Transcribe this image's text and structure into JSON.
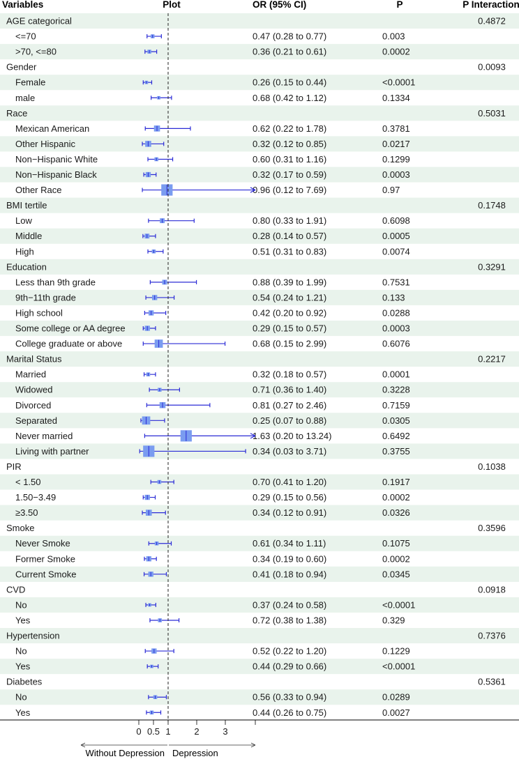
{
  "headers": {
    "variables": "Variables",
    "plot": "Plot",
    "or": "OR (95% CI)",
    "p": "P",
    "p_interaction": "P Interaction"
  },
  "footer": {
    "left_label": "Without Depression",
    "right_label": "Depression"
  },
  "colors": {
    "stripe": "#e9f3ec",
    "marker": "#2b2bd6",
    "box": "#7a9cf0",
    "text": "#1a1a1a"
  },
  "chart_data": {
    "type": "forest",
    "xlim": [
      0,
      3
    ],
    "reference_line": 1,
    "x_ticks": [
      {
        "value": 0,
        "label": "0"
      },
      {
        "value": 0.5,
        "label": "0.5"
      },
      {
        "value": 1,
        "label": "1"
      },
      {
        "value": 2,
        "label": "2"
      },
      {
        "value": 3,
        "label": "3"
      }
    ],
    "rows": [
      {
        "label": "AGE categorical",
        "header": true,
        "p_int": "0.4872"
      },
      {
        "label": "<=70",
        "or": 0.47,
        "lo": 0.28,
        "hi": 0.77,
        "ci_text": "0.47 (0.28 to 0.77)",
        "p": "0.003",
        "w": 0.018
      },
      {
        "label": ">70, <=80",
        "or": 0.36,
        "lo": 0.21,
        "hi": 0.61,
        "ci_text": "0.36 (0.21 to 0.61)",
        "p": "0.0002",
        "w": 0.018
      },
      {
        "label": "Gender",
        "header": true,
        "p_int": "0.0093"
      },
      {
        "label": "Female",
        "or": 0.26,
        "lo": 0.15,
        "hi": 0.44,
        "ci_text": "0.26 (0.15 to 0.44)",
        "p": "<0.0001",
        "w": 0.012
      },
      {
        "label": "male",
        "or": 0.68,
        "lo": 0.42,
        "hi": 1.12,
        "ci_text": "0.68 (0.42 to 1.12)",
        "p": "0.1334",
        "w": 0.012
      },
      {
        "label": "Race",
        "header": true,
        "p_int": "0.5031"
      },
      {
        "label": "Mexican American",
        "or": 0.62,
        "lo": 0.22,
        "hi": 1.78,
        "ci_text": "0.62 (0.22 to 1.78)",
        "p": "0.3781",
        "w": 0.05
      },
      {
        "label": "Other Hispanic",
        "or": 0.32,
        "lo": 0.12,
        "hi": 0.85,
        "ci_text": "0.32 (0.12 to 0.85)",
        "p": "0.0217",
        "w": 0.05
      },
      {
        "label": "Non−Hispanic White",
        "or": 0.6,
        "lo": 0.31,
        "hi": 1.16,
        "ci_text": "0.60 (0.31 to 1.16)",
        "p": "0.1299",
        "w": 0.018
      },
      {
        "label": "Non−Hispanic Black",
        "or": 0.32,
        "lo": 0.17,
        "hi": 0.59,
        "ci_text": "0.32 (0.17 to 0.59)",
        "p": "0.0003",
        "w": 0.035
      },
      {
        "label": "Other Race",
        "or": 0.96,
        "lo": 0.12,
        "hi": 7.69,
        "ci_text": "0.96 (0.12 to 7.69)",
        "p": "0.97",
        "w": 0.2
      },
      {
        "label": "BMI tertile",
        "header": true,
        "p_int": "0.1748"
      },
      {
        "label": "Low",
        "or": 0.8,
        "lo": 0.33,
        "hi": 1.91,
        "ci_text": "0.80 (0.33 to 1.91)",
        "p": "0.6098",
        "w": 0.03
      },
      {
        "label": "Middle",
        "or": 0.28,
        "lo": 0.14,
        "hi": 0.57,
        "ci_text": "0.28 (0.14 to 0.57)",
        "p": "0.0005",
        "w": 0.03
      },
      {
        "label": "High",
        "or": 0.51,
        "lo": 0.31,
        "hi": 0.83,
        "ci_text": "0.51 (0.31 to 0.83)",
        "p": "0.0074",
        "w": 0.018
      },
      {
        "label": "Education",
        "header": true,
        "p_int": "0.3291"
      },
      {
        "label": "Less than 9th grade",
        "or": 0.88,
        "lo": 0.39,
        "hi": 1.99,
        "ci_text": "0.88 (0.39 to 1.99)",
        "p": "0.7531",
        "w": 0.03
      },
      {
        "label": "9th−11th grade",
        "or": 0.54,
        "lo": 0.24,
        "hi": 1.21,
        "ci_text": "0.54 (0.24 to 1.21)",
        "p": "0.133",
        "w": 0.035
      },
      {
        "label": "High school",
        "or": 0.42,
        "lo": 0.2,
        "hi": 0.92,
        "ci_text": "0.42 (0.20 to 0.92)",
        "p": "0.0288",
        "w": 0.035
      },
      {
        "label": "Some college or AA degree",
        "or": 0.29,
        "lo": 0.15,
        "hi": 0.57,
        "ci_text": "0.29 (0.15 to 0.57)",
        "p": "0.0003",
        "w": 0.035
      },
      {
        "label": "College graduate or above",
        "or": 0.68,
        "lo": 0.15,
        "hi": 2.99,
        "ci_text": "0.68 (0.15 to 2.99)",
        "p": "0.6076",
        "w": 0.1
      },
      {
        "label": "Marital Status",
        "header": true,
        "p_int": "0.2217"
      },
      {
        "label": "Married",
        "or": 0.32,
        "lo": 0.18,
        "hi": 0.57,
        "ci_text": "0.32 (0.18 to 0.57)",
        "p": "0.0001",
        "w": 0.018
      },
      {
        "label": "Widowed",
        "or": 0.71,
        "lo": 0.36,
        "hi": 1.4,
        "ci_text": "0.71 (0.36 to 1.40)",
        "p": "0.3228",
        "w": 0.018
      },
      {
        "label": "Divorced",
        "or": 0.81,
        "lo": 0.27,
        "hi": 2.46,
        "ci_text": "0.81 (0.27 to 2.46)",
        "p": "0.7159",
        "w": 0.05
      },
      {
        "label": "Separated",
        "or": 0.25,
        "lo": 0.07,
        "hi": 0.88,
        "ci_text": "0.25 (0.07 to 0.88)",
        "p": "0.0305",
        "w": 0.1
      },
      {
        "label": "Never married",
        "or": 1.63,
        "lo": 0.2,
        "hi": 13.24,
        "ci_text": "1.63 (0.20 to 13.24)",
        "p": "0.6492",
        "w": 0.2
      },
      {
        "label": "Living with partner",
        "or": 0.34,
        "lo": 0.03,
        "hi": 3.71,
        "ci_text": "0.34 (0.03 to 3.71)",
        "p": "0.3755",
        "w": 0.2
      },
      {
        "label": "PIR",
        "header": true,
        "p_int": "0.1038"
      },
      {
        "label": "< 1.50",
        "or": 0.7,
        "lo": 0.41,
        "hi": 1.2,
        "ci_text": "0.70 (0.41 to 1.20)",
        "p": "0.1917",
        "w": 0.018
      },
      {
        "label": "1.50−3.49",
        "or": 0.29,
        "lo": 0.15,
        "hi": 0.56,
        "ci_text": "0.29 (0.15 to 0.56)",
        "p": "0.0002",
        "w": 0.035
      },
      {
        "label": "≥3.50",
        "or": 0.34,
        "lo": 0.12,
        "hi": 0.91,
        "ci_text": "0.34 (0.12 to 0.91)",
        "p": "0.0326",
        "w": 0.05
      },
      {
        "label": "Smoke",
        "header": true,
        "p_int": "0.3596"
      },
      {
        "label": "Never Smoke",
        "or": 0.61,
        "lo": 0.34,
        "hi": 1.11,
        "ci_text": "0.61 (0.34 to 1.11)",
        "p": "0.1075",
        "w": 0.018
      },
      {
        "label": "Former Smoke",
        "or": 0.34,
        "lo": 0.19,
        "hi": 0.6,
        "ci_text": "0.34 (0.19 to 0.60)",
        "p": "0.0002",
        "w": 0.035
      },
      {
        "label": "Current Smoke",
        "or": 0.41,
        "lo": 0.18,
        "hi": 0.94,
        "ci_text": "0.41 (0.18 to 0.94)",
        "p": "0.0345",
        "w": 0.035
      },
      {
        "label": "CVD",
        "header": true,
        "p_int": "0.0918"
      },
      {
        "label": "No",
        "or": 0.37,
        "lo": 0.24,
        "hi": 0.58,
        "ci_text": "0.37 (0.24 to 0.58)",
        "p": "<0.0001",
        "w": 0.012
      },
      {
        "label": "Yes",
        "or": 0.72,
        "lo": 0.38,
        "hi": 1.38,
        "ci_text": "0.72 (0.38 to 1.38)",
        "p": "0.329",
        "w": 0.018
      },
      {
        "label": "Hypertension",
        "header": true,
        "p_int": "0.7376"
      },
      {
        "label": "No",
        "or": 0.52,
        "lo": 0.22,
        "hi": 1.2,
        "ci_text": "0.52 (0.22 to 1.20)",
        "p": "0.1229",
        "w": 0.035
      },
      {
        "label": "Yes",
        "or": 0.44,
        "lo": 0.29,
        "hi": 0.66,
        "ci_text": "0.44 (0.29 to 0.66)",
        "p": "<0.0001",
        "w": 0.012
      },
      {
        "label": "Diabetes",
        "header": true,
        "p_int": "0.5361"
      },
      {
        "label": "No",
        "or": 0.56,
        "lo": 0.33,
        "hi": 0.94,
        "ci_text": "0.56 (0.33 to 0.94)",
        "p": "0.0289",
        "w": 0.018
      },
      {
        "label": "Yes",
        "or": 0.44,
        "lo": 0.26,
        "hi": 0.75,
        "ci_text": "0.44 (0.26 to 0.75)",
        "p": "0.0027",
        "w": 0.018
      }
    ]
  }
}
